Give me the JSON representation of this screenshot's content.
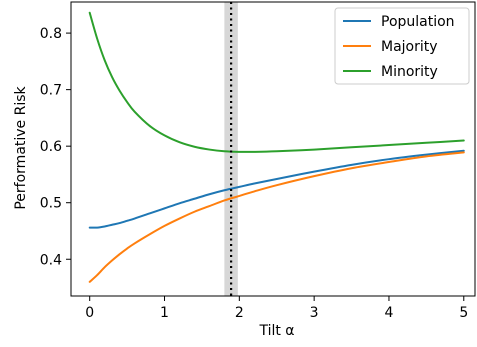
{
  "chart_data": {
    "type": "line",
    "title": "",
    "xlabel": "Tilt α",
    "ylabel": "Performative Risk",
    "xlim": [
      -0.25,
      5.15
    ],
    "ylim": [
      0.335,
      0.855
    ],
    "xticks": [
      0,
      1,
      2,
      3,
      4,
      5
    ],
    "xtick_labels": [
      "0",
      "1",
      "2",
      "3",
      "4",
      "5"
    ],
    "yticks": [
      0.4,
      0.5,
      0.6,
      0.7,
      0.8
    ],
    "ytick_labels": [
      "0.4",
      "0.5",
      "0.6",
      "0.7",
      "0.8"
    ],
    "grid": false,
    "legend_position": "upper right",
    "vline": {
      "x": 1.89,
      "style": "dotted",
      "color": "#000000"
    },
    "vband": {
      "x0": 1.8,
      "x1": 1.98,
      "color": "#d3d3d3"
    },
    "x": [
      0,
      0.1,
      0.2,
      0.3,
      0.4,
      0.5,
      0.6,
      0.8,
      1.0,
      1.2,
      1.4,
      1.6,
      1.8,
      2.0,
      2.2,
      2.5,
      3.0,
      3.5,
      4.0,
      4.5,
      5.0
    ],
    "series": [
      {
        "name": "Population",
        "color": "#1f77b4",
        "values": [
          0.456,
          0.456,
          0.458,
          0.461,
          0.464,
          0.468,
          0.472,
          0.481,
          0.49,
          0.499,
          0.507,
          0.515,
          0.522,
          0.528,
          0.534,
          0.542,
          0.555,
          0.567,
          0.577,
          0.585,
          0.592
        ]
      },
      {
        "name": "Majority",
        "color": "#ff7f0e",
        "values": [
          0.36,
          0.372,
          0.386,
          0.398,
          0.409,
          0.419,
          0.428,
          0.444,
          0.459,
          0.472,
          0.484,
          0.494,
          0.504,
          0.512,
          0.52,
          0.531,
          0.547,
          0.561,
          0.572,
          0.582,
          0.589
        ]
      },
      {
        "name": "Minority",
        "color": "#2ca02c",
        "values": [
          0.836,
          0.79,
          0.752,
          0.722,
          0.698,
          0.678,
          0.661,
          0.636,
          0.619,
          0.607,
          0.599,
          0.594,
          0.591,
          0.59,
          0.59,
          0.591,
          0.594,
          0.598,
          0.602,
          0.606,
          0.61
        ]
      }
    ]
  }
}
